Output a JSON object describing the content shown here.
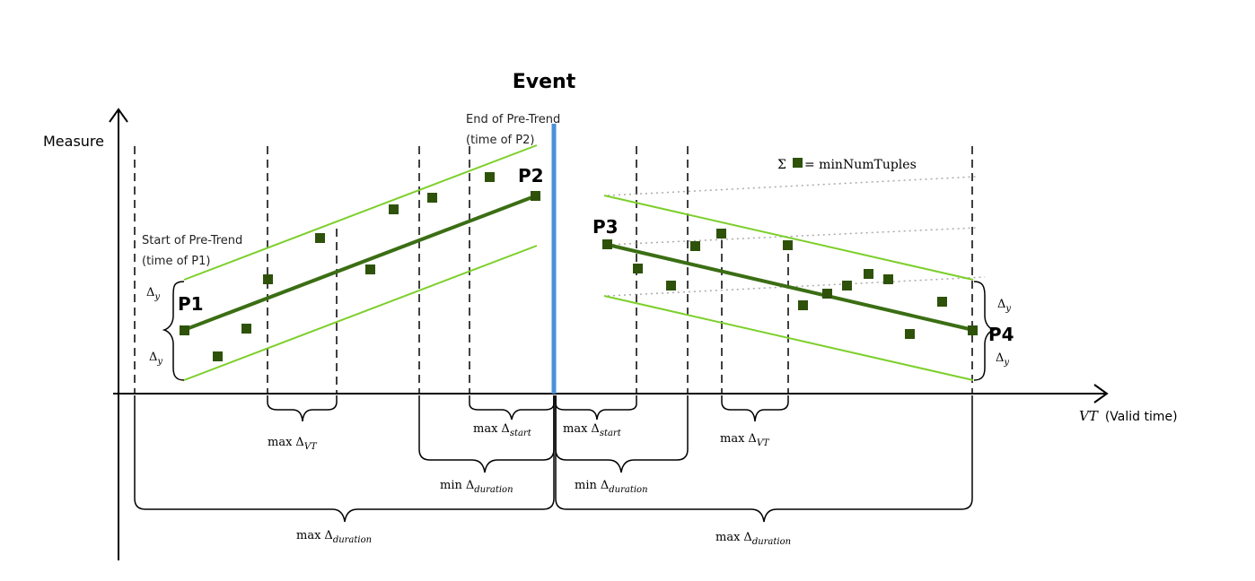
{
  "labels": {
    "y_axis": "Measure",
    "x_axis_var": "VT",
    "x_axis_desc": "(Valid time)",
    "event": "Event",
    "start_pretrend_1": "Start of Pre-Trend",
    "start_pretrend_2": "(time of P1)",
    "end_pretrend_1": "End of Pre-Trend",
    "end_pretrend_2": "(time of P2)",
    "sum_symbol": "Σ",
    "min_tuples": "= minNumTuples"
  },
  "points": {
    "p1": "P1",
    "p2": "P2",
    "p3": "P3",
    "p4": "P4"
  },
  "math": {
    "delta": "Δ",
    "max": "max",
    "min": "min",
    "sub_y": "y",
    "sub_vt": "VT",
    "sub_start": "start",
    "sub_duration": "duration"
  },
  "colors": {
    "trend_line": "#3b6e14",
    "band_line": "#7ccf2a",
    "event_line": "#4a90d9",
    "data_point": "#2e5209"
  }
}
